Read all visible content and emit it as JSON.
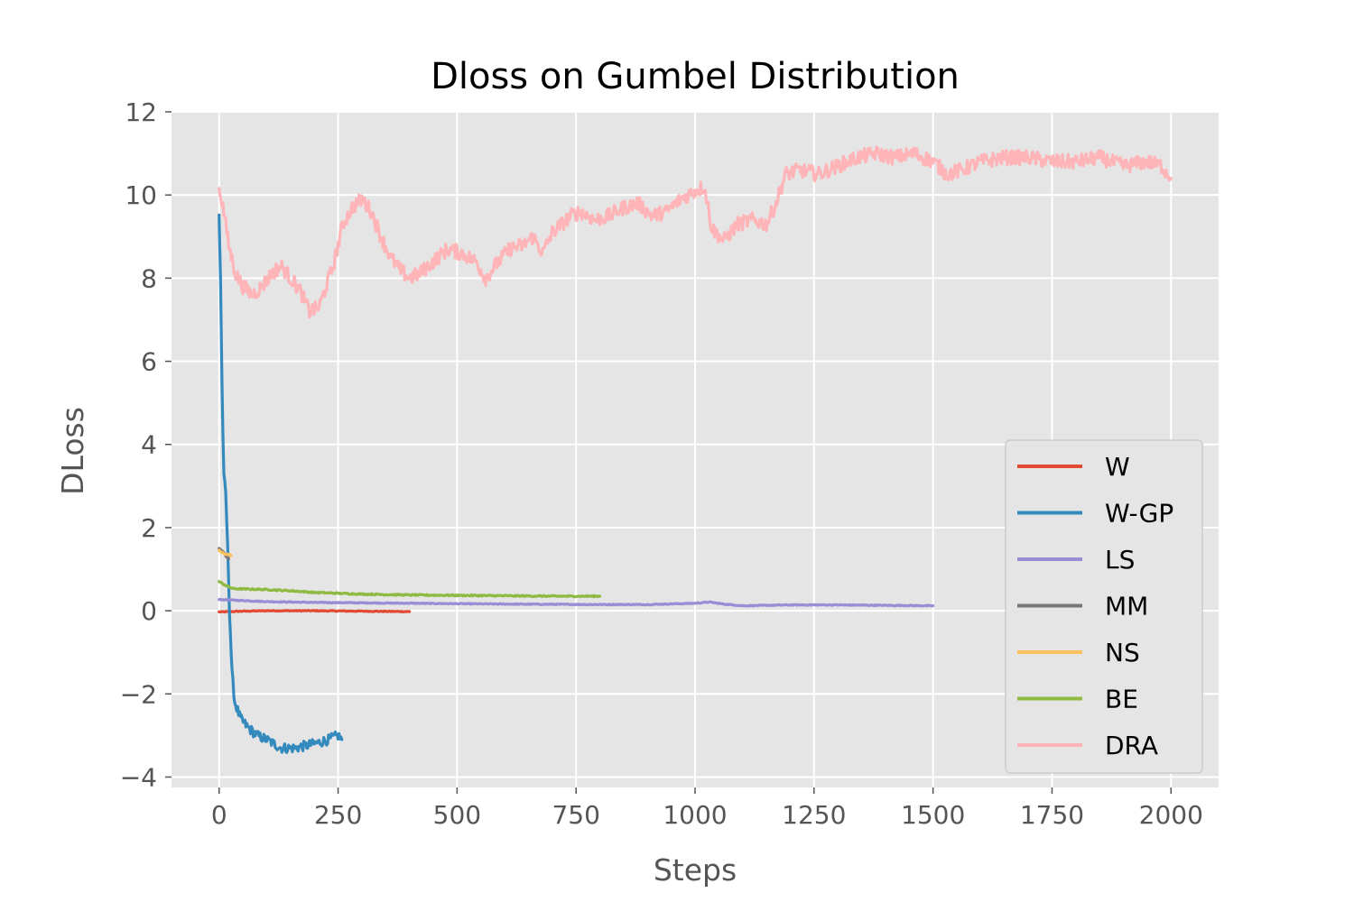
{
  "chart_data": {
    "type": "line",
    "title": "Dloss on Gumbel Distribution",
    "xlabel": "Steps",
    "ylabel": "DLoss",
    "xlim": [
      -100,
      2100
    ],
    "ylim": [
      -4.25,
      12.0
    ],
    "xticks": [
      0,
      250,
      500,
      750,
      1000,
      1250,
      1500,
      1750,
      2000
    ],
    "xtick_labels": [
      "0",
      "250",
      "500",
      "750",
      "1000",
      "1250",
      "1500",
      "1750",
      "2000"
    ],
    "yticks": [
      -4,
      -2,
      0,
      2,
      4,
      6,
      8,
      10,
      12
    ],
    "ytick_labels": [
      "−4",
      "−2",
      "0",
      "2",
      "4",
      "6",
      "8",
      "10",
      "12"
    ],
    "grid": true,
    "legend_position": "lower-right",
    "background": "#e5e5e5",
    "series": [
      {
        "name": "W",
        "color": "#e24a33",
        "noise": 0.01,
        "points": [
          [
            0,
            -0.03
          ],
          [
            50,
            -0.01
          ],
          [
            100,
            0.0
          ],
          [
            200,
            0.0
          ],
          [
            300,
            -0.01
          ],
          [
            400,
            -0.02
          ]
        ]
      },
      {
        "name": "W-GP",
        "color": "#348abd",
        "noise": 0.12,
        "points": [
          [
            0,
            9.5
          ],
          [
            3,
            8.0
          ],
          [
            6,
            5.5
          ],
          [
            10,
            3.2
          ],
          [
            14,
            2.8
          ],
          [
            18,
            1.5
          ],
          [
            22,
            0.0
          ],
          [
            27,
            -1.5
          ],
          [
            33,
            -2.2
          ],
          [
            45,
            -2.6
          ],
          [
            60,
            -2.8
          ],
          [
            80,
            -3.0
          ],
          [
            100,
            -3.1
          ],
          [
            130,
            -3.3
          ],
          [
            160,
            -3.3
          ],
          [
            200,
            -3.2
          ],
          [
            230,
            -3.1
          ],
          [
            250,
            -3.0
          ],
          [
            258,
            -3.1
          ]
        ]
      },
      {
        "name": "LS",
        "color": "#988ed5",
        "noise": 0.01,
        "points": [
          [
            0,
            0.27
          ],
          [
            100,
            0.22
          ],
          [
            200,
            0.2
          ],
          [
            400,
            0.18
          ],
          [
            600,
            0.16
          ],
          [
            800,
            0.15
          ],
          [
            900,
            0.15
          ],
          [
            1000,
            0.18
          ],
          [
            1030,
            0.21
          ],
          [
            1060,
            0.16
          ],
          [
            1100,
            0.12
          ],
          [
            1200,
            0.14
          ],
          [
            1300,
            0.14
          ],
          [
            1400,
            0.13
          ],
          [
            1500,
            0.12
          ]
        ]
      },
      {
        "name": "MM",
        "color": "#777777",
        "noise": 0.0,
        "points": [
          [
            0,
            1.5
          ],
          [
            5,
            1.45
          ],
          [
            10,
            1.4
          ],
          [
            15,
            1.3
          ],
          [
            20,
            1.25
          ]
        ]
      },
      {
        "name": "NS",
        "color": "#fbc15e",
        "noise": 0.02,
        "points": [
          [
            0,
            1.45
          ],
          [
            5,
            1.4
          ],
          [
            10,
            1.38
          ],
          [
            15,
            1.36
          ],
          [
            20,
            1.35
          ],
          [
            25,
            1.33
          ]
        ]
      },
      {
        "name": "BE",
        "color": "#8eba42",
        "noise": 0.015,
        "points": [
          [
            0,
            0.7
          ],
          [
            15,
            0.6
          ],
          [
            30,
            0.53
          ],
          [
            60,
            0.52
          ],
          [
            100,
            0.51
          ],
          [
            150,
            0.48
          ],
          [
            200,
            0.44
          ],
          [
            300,
            0.4
          ],
          [
            400,
            0.38
          ],
          [
            500,
            0.37
          ],
          [
            600,
            0.36
          ],
          [
            700,
            0.35
          ],
          [
            800,
            0.35
          ]
        ]
      },
      {
        "name": "DRA",
        "color": "#ffb5b8",
        "noise": 0.18,
        "points": [
          [
            0,
            10.2
          ],
          [
            10,
            9.6
          ],
          [
            20,
            8.8
          ],
          [
            35,
            8.1
          ],
          [
            50,
            7.8
          ],
          [
            70,
            7.6
          ],
          [
            90,
            7.8
          ],
          [
            110,
            8.1
          ],
          [
            130,
            8.3
          ],
          [
            150,
            8.0
          ],
          [
            170,
            7.7
          ],
          [
            190,
            7.2
          ],
          [
            210,
            7.3
          ],
          [
            240,
            8.3
          ],
          [
            260,
            9.3
          ],
          [
            280,
            9.7
          ],
          [
            300,
            9.9
          ],
          [
            320,
            9.6
          ],
          [
            340,
            9.0
          ],
          [
            360,
            8.5
          ],
          [
            380,
            8.2
          ],
          [
            400,
            8.0
          ],
          [
            420,
            8.1
          ],
          [
            450,
            8.4
          ],
          [
            480,
            8.7
          ],
          [
            510,
            8.6
          ],
          [
            540,
            8.4
          ],
          [
            560,
            8.0
          ],
          [
            580,
            8.3
          ],
          [
            610,
            8.7
          ],
          [
            640,
            8.8
          ],
          [
            660,
            9.0
          ],
          [
            680,
            8.6
          ],
          [
            700,
            9.1
          ],
          [
            720,
            9.3
          ],
          [
            740,
            9.5
          ],
          [
            760,
            9.6
          ],
          [
            790,
            9.4
          ],
          [
            820,
            9.5
          ],
          [
            850,
            9.7
          ],
          [
            880,
            9.8
          ],
          [
            910,
            9.5
          ],
          [
            940,
            9.6
          ],
          [
            970,
            9.9
          ],
          [
            1000,
            10.1
          ],
          [
            1020,
            10.2
          ],
          [
            1035,
            9.2
          ],
          [
            1060,
            8.9
          ],
          [
            1090,
            9.3
          ],
          [
            1120,
            9.4
          ],
          [
            1150,
            9.3
          ],
          [
            1170,
            9.8
          ],
          [
            1190,
            10.5
          ],
          [
            1220,
            10.6
          ],
          [
            1260,
            10.5
          ],
          [
            1300,
            10.7
          ],
          [
            1340,
            10.9
          ],
          [
            1380,
            11.0
          ],
          [
            1420,
            10.9
          ],
          [
            1460,
            11.0
          ],
          [
            1500,
            10.8
          ],
          [
            1530,
            10.5
          ],
          [
            1560,
            10.6
          ],
          [
            1600,
            10.8
          ],
          [
            1650,
            10.9
          ],
          [
            1700,
            10.9
          ],
          [
            1750,
            10.8
          ],
          [
            1800,
            10.8
          ],
          [
            1850,
            10.9
          ],
          [
            1900,
            10.7
          ],
          [
            1950,
            10.8
          ],
          [
            1980,
            10.7
          ],
          [
            2000,
            10.4
          ]
        ]
      }
    ]
  }
}
